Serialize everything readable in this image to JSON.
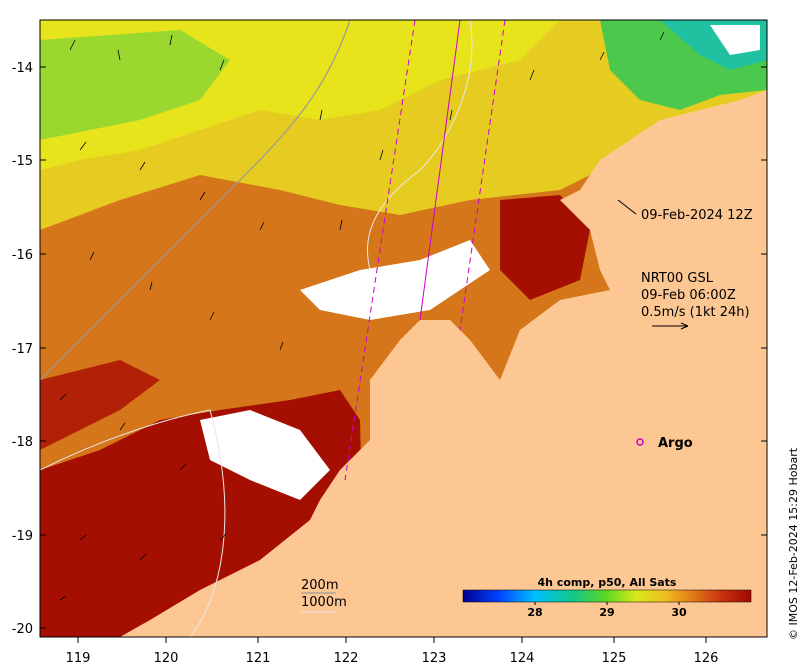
{
  "map": {
    "x_ticks": [
      "119",
      "120",
      "121",
      "122",
      "123",
      "124",
      "125",
      "126"
    ],
    "y_ticks": [
      "-14",
      "-15",
      "-16",
      "-17",
      "-18",
      "-19",
      "-20"
    ],
    "date_label": "09-Feb-2024 12Z",
    "product_line1": "NRT00 GSL",
    "product_line2": "09-Feb 06:00Z",
    "product_line3": "0.5m/s (1kt 24h)",
    "argo_label": "Argo",
    "contour_200": "200m",
    "contour_1000": "1000m",
    "footer_credit": "© IMOS 12-Feb-2024 15:29 Hobart"
  },
  "colorbar": {
    "title": "4h comp, p50, All Sats",
    "tick_labels": [
      "28",
      "29",
      "30"
    ],
    "range": [
      27.0,
      31.0
    ],
    "tick_values": [
      28,
      29,
      30
    ]
  },
  "colors": {
    "land": "#fcc792",
    "sst_hot": "#a50f02",
    "sst_warm": "#d9680f",
    "sst_mid": "#e8a91a",
    "sst_yellow": "#e8e41c",
    "sst_green": "#7bd836",
    "argo": "#cc00cc",
    "track": "#cc00cc"
  }
}
